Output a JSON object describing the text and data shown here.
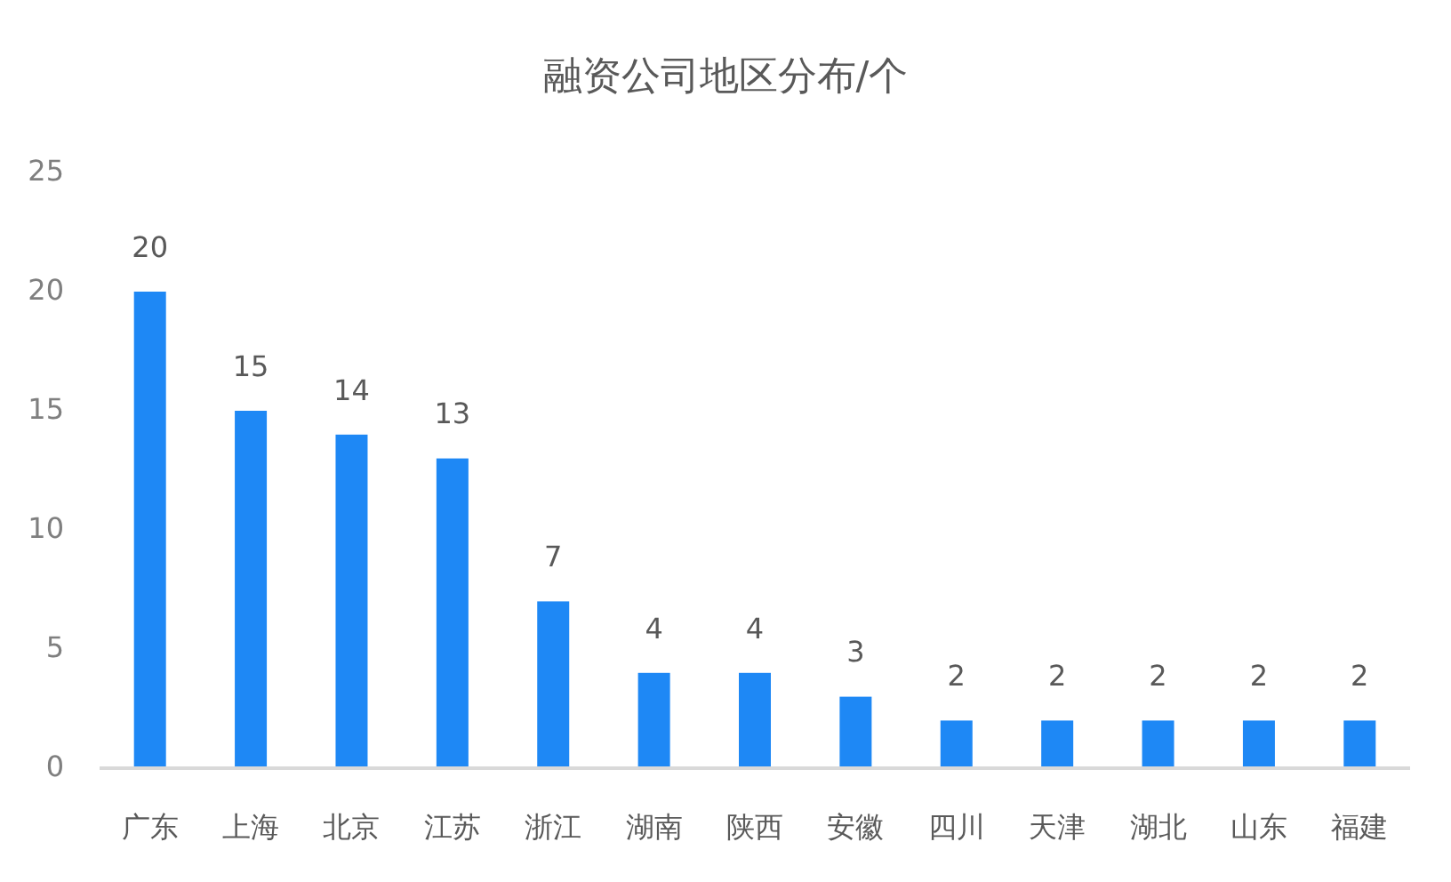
{
  "chart_data": {
    "type": "bar",
    "title": "融资公司地区分布/个",
    "categories": [
      "广东",
      "上海",
      "北京",
      "江苏",
      "浙江",
      "湖南",
      "陕西",
      "安徽",
      "四川",
      "天津",
      "湖北",
      "山东",
      "福建"
    ],
    "values": [
      20,
      15,
      14,
      13,
      7,
      4,
      4,
      3,
      2,
      2,
      2,
      2,
      2
    ],
    "color": "#1e88f5",
    "ylim": [
      0,
      25
    ],
    "yticks": [
      0,
      5,
      10,
      15,
      20,
      25
    ],
    "grid": false,
    "data_labels": true
  }
}
